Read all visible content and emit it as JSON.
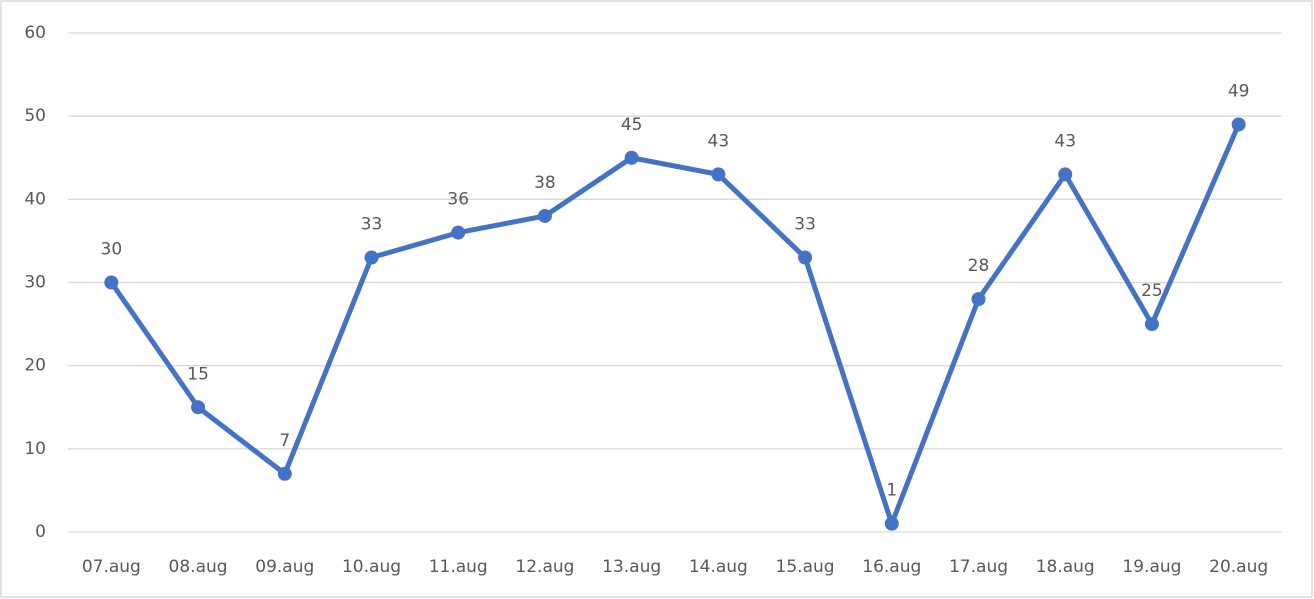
{
  "chart_data": {
    "type": "line",
    "categories": [
      "07.aug",
      "08.aug",
      "09.aug",
      "10.aug",
      "11.aug",
      "12.aug",
      "13.aug",
      "14.aug",
      "15.aug",
      "16.aug",
      "17.aug",
      "18.aug",
      "19.aug",
      "20.aug"
    ],
    "values": [
      30,
      15,
      7,
      33,
      36,
      38,
      45,
      43,
      33,
      1,
      28,
      43,
      25,
      49
    ],
    "color": "#4472c4",
    "ylim": [
      0,
      60
    ],
    "yticks": [
      0,
      10,
      20,
      30,
      40,
      50,
      60
    ],
    "grid": true
  }
}
